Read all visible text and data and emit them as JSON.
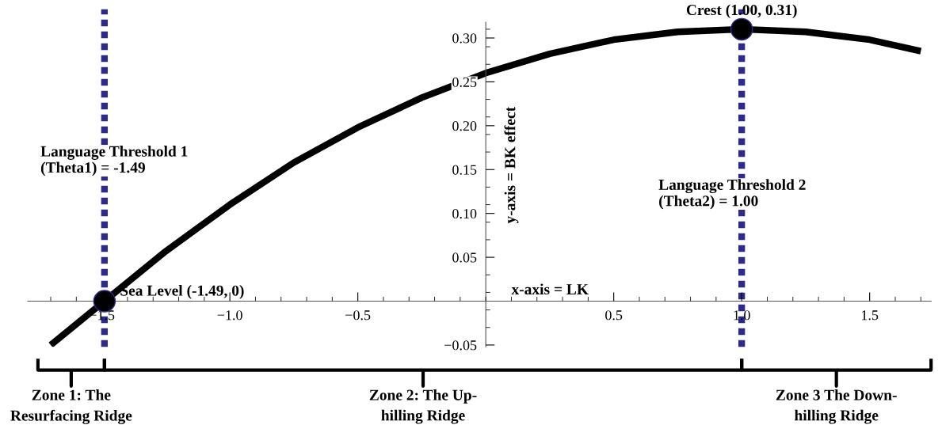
{
  "chart_data": {
    "type": "line",
    "xlabel": "x-axis = LK",
    "ylabel": "y-axis = BK effect",
    "xlim": [
      -1.79,
      1.74
    ],
    "ylim": [
      -0.052,
      0.318
    ],
    "xticks": [
      {
        "value": -1.5,
        "label": "−1.5"
      },
      {
        "value": -1.0,
        "label": "−1.0"
      },
      {
        "value": -0.5,
        "label": "−0.5"
      },
      0.5,
      {
        "value": 1.0,
        "label": "1.0"
      },
      1.5
    ],
    "yticks": [
      {
        "value": -0.05,
        "label": "−0.05"
      },
      0.05,
      {
        "value": 0.1,
        "label": "0.10"
      },
      0.15,
      {
        "value": 0.2,
        "label": "0.20"
      },
      0.25,
      {
        "value": 0.3,
        "label": "0.30"
      }
    ],
    "series": [
      {
        "color": "#000000",
        "marker": "none",
        "x": [
          -1.7,
          -1.49,
          -1.25,
          -1.0,
          -0.75,
          -0.5,
          -0.25,
          0,
          0.25,
          0.5,
          0.75,
          1.0,
          1.25,
          1.5,
          1.7
        ],
        "values": [
          -0.05,
          0,
          0.057,
          0.11,
          0.158,
          0.198,
          0.232,
          0.26,
          0.282,
          0.298,
          0.307,
          0.31,
          0.307,
          0.298,
          0.285
        ]
      },
      {
        "type": "scatter",
        "color": "#000000",
        "marker": "circle",
        "x": [
          -1.49,
          1.0
        ],
        "values": [
          0,
          0.31
        ]
      }
    ],
    "ref_lines": [
      {
        "axis": "x",
        "value": -1.49,
        "label": "Language Threshold 1\n(Theta1) = -1.49",
        "color": "#2e2a8a",
        "line_style": "dashed"
      },
      {
        "axis": "x",
        "value": 1.0,
        "label": "Language Threshold 2\n(Theta2) = 1.00",
        "color": "#2e2a8a",
        "line_style": "dashed"
      }
    ],
    "annotations": [
      "Zone 1: The\nResurfacing Ridge",
      "Zone 2: The Up-\nhilling Ridge",
      "Zone 3 The Down-\nhilling Ridge",
      {
        "text": "Sea Level (-1.49, 0)",
        "x": -1.49,
        "y": 0
      },
      {
        "text": "Crest (1.00, 0.31)",
        "x": 1.0,
        "y": 0.31
      }
    ],
    "grid": false,
    "legend": false
  }
}
